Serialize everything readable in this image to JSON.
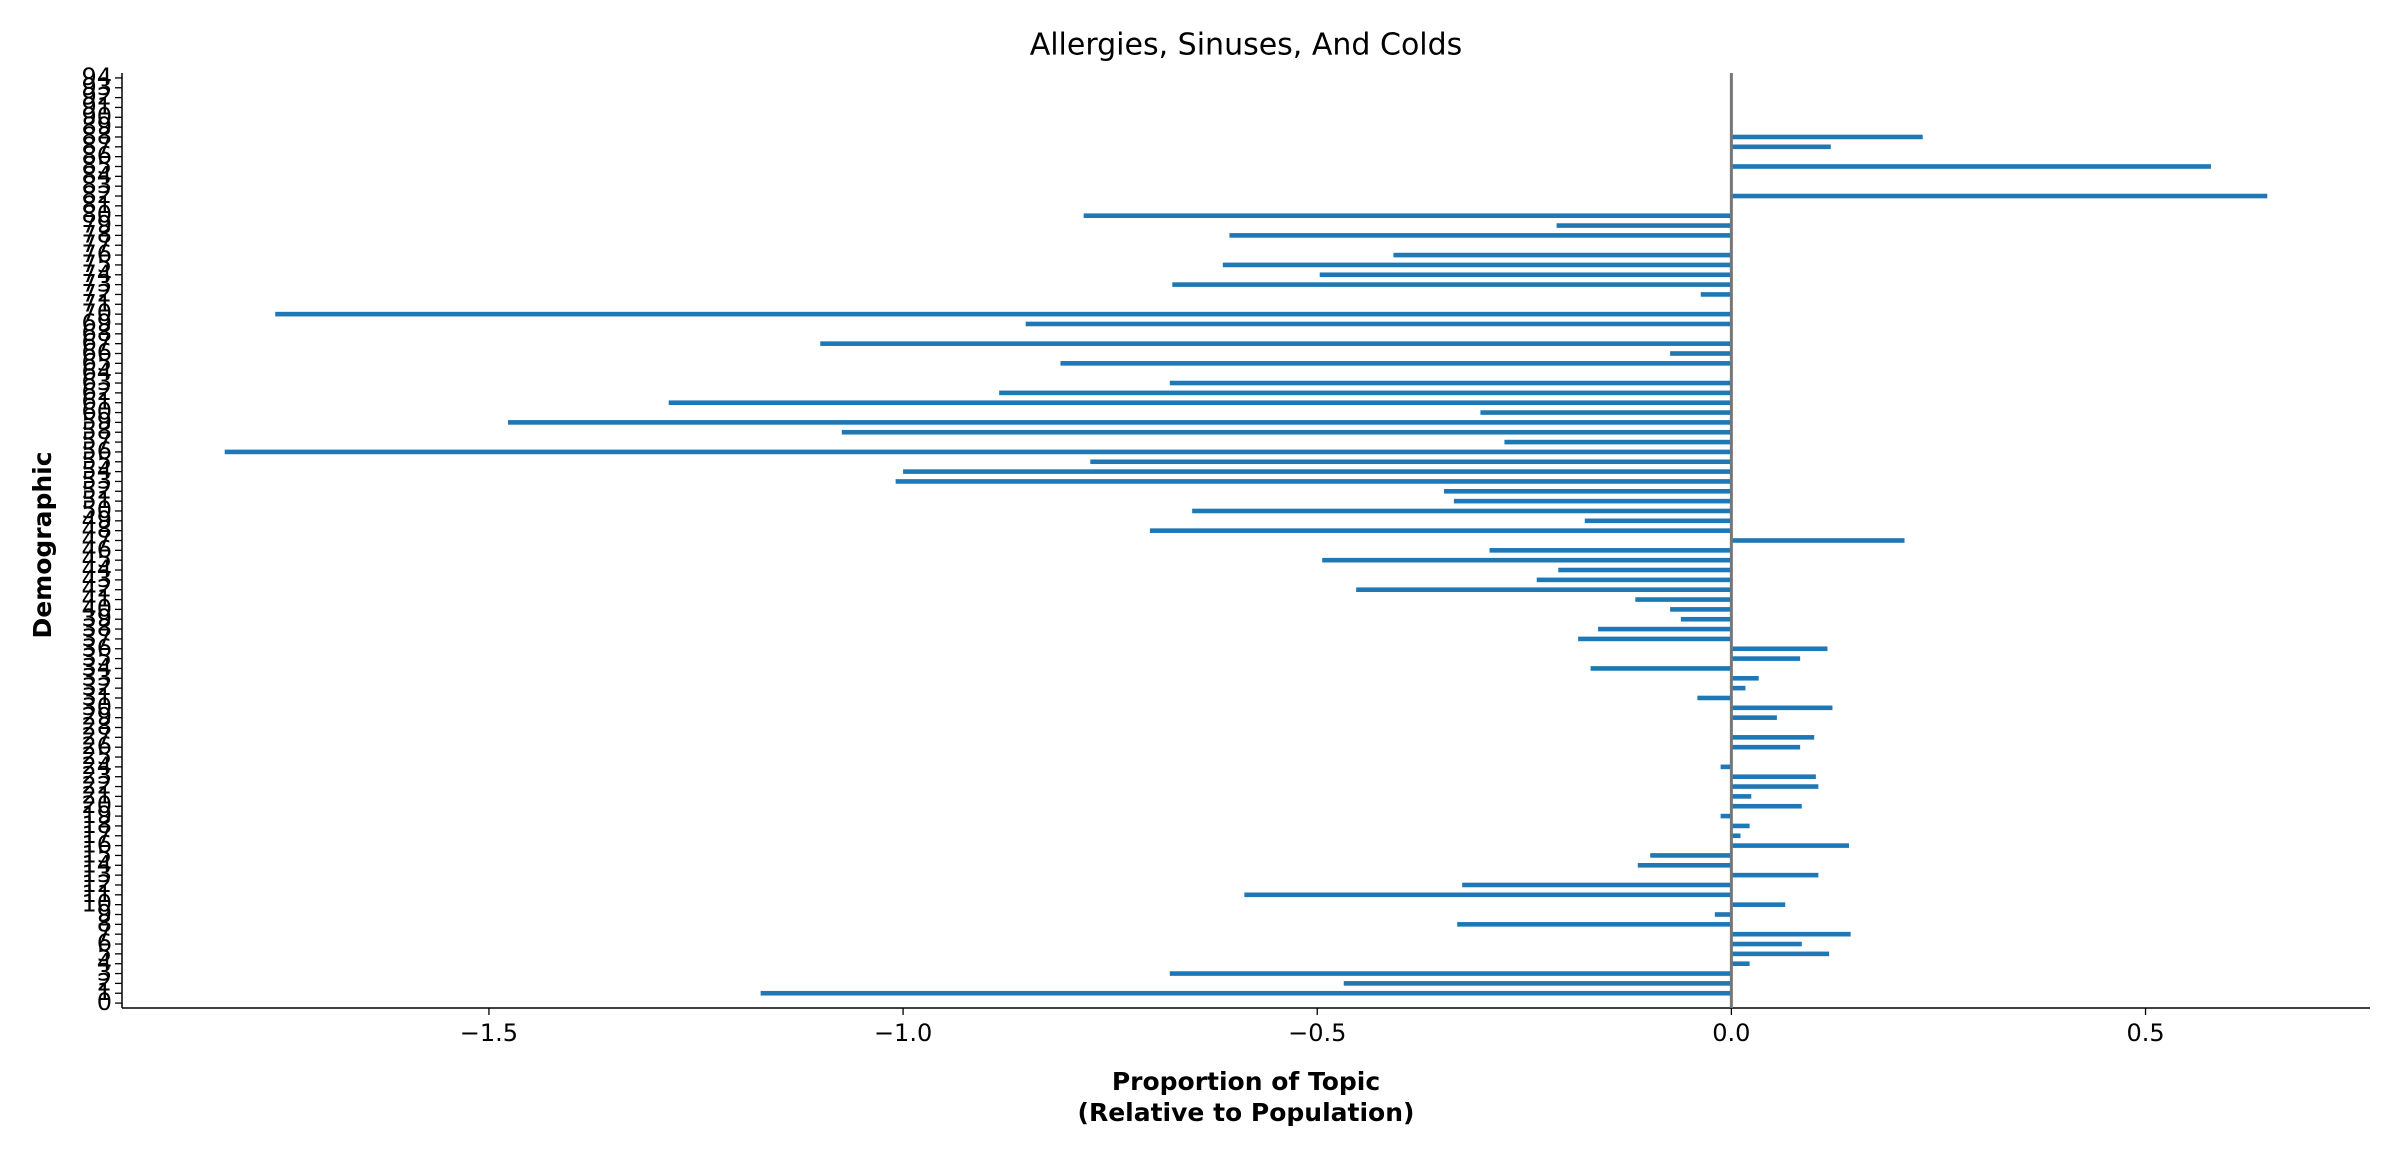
{
  "chart_data": {
    "type": "barh",
    "title": "Allergies, Sinuses, And Colds",
    "xlabel": [
      "Proportion of Topic",
      "(Relative to Population)"
    ],
    "ylabel": "Demographic",
    "color": "#1f77b4",
    "categories": [
      "0",
      "1",
      "2",
      "3",
      "4",
      "5",
      "6",
      "7",
      "8",
      "9",
      "10",
      "11",
      "12",
      "13",
      "14",
      "15",
      "16",
      "17",
      "18",
      "19",
      "20",
      "21",
      "22",
      "23",
      "24",
      "25",
      "26",
      "27",
      "28",
      "29",
      "30",
      "31",
      "32",
      "33",
      "34",
      "35",
      "36",
      "37",
      "38",
      "39",
      "40",
      "41",
      "42",
      "43",
      "44",
      "45",
      "46",
      "47",
      "48",
      "49",
      "50",
      "51",
      "52",
      "53",
      "54",
      "55",
      "56",
      "57",
      "58",
      "59",
      "60",
      "61",
      "62",
      "63",
      "64",
      "65",
      "66",
      "67",
      "68",
      "69",
      "70",
      "71",
      "72",
      "73",
      "74",
      "75",
      "76",
      "77",
      "78",
      "79",
      "80",
      "81",
      "82",
      "83",
      "84",
      "85",
      "86",
      "87",
      "88",
      "89",
      "90",
      "91",
      "92",
      "93",
      "94"
    ],
    "values": [
      0,
      -1.172,
      -0.468,
      -0.678,
      0.022,
      0.118,
      0.085,
      0.144,
      -0.331,
      -0.02,
      0.065,
      -0.588,
      -0.325,
      0.105,
      -0.113,
      -0.098,
      0.142,
      0.011,
      0.022,
      -0.013,
      0.085,
      0.024,
      0.105,
      0.102,
      -0.013,
      0,
      0.083,
      0.1,
      0,
      0.055,
      0.122,
      -0.041,
      0.017,
      0.033,
      -0.17,
      0.083,
      0.116,
      -0.185,
      -0.161,
      -0.061,
      -0.074,
      -0.116,
      -0.453,
      -0.235,
      -0.209,
      -0.494,
      -0.292,
      0.209,
      -0.702,
      -0.177,
      -0.651,
      -0.335,
      -0.347,
      -1.009,
      -1.0,
      -0.774,
      -1.819,
      -0.274,
      -1.074,
      -1.477,
      -0.303,
      -1.283,
      -0.884,
      -0.678,
      0,
      -0.81,
      -0.074,
      -1.1,
      0,
      -0.852,
      -1.758,
      0,
      -0.037,
      -0.675,
      -0.497,
      -0.614,
      -0.408,
      0,
      -0.606,
      -0.211,
      -0.782,
      0,
      0.647,
      0,
      0,
      0.579,
      0,
      0.12,
      0.231,
      0,
      0,
      0,
      0,
      0,
      0
    ],
    "xlim": [
      -1.943,
      0.771
    ],
    "xticks": [
      {
        "value": -1.5,
        "label": "−1.5"
      },
      {
        "value": -1.0,
        "label": "−1.0"
      },
      {
        "value": -0.5,
        "label": "−0.5"
      },
      {
        "value": 0,
        "label": "0.0"
      },
      0.5
    ]
  }
}
